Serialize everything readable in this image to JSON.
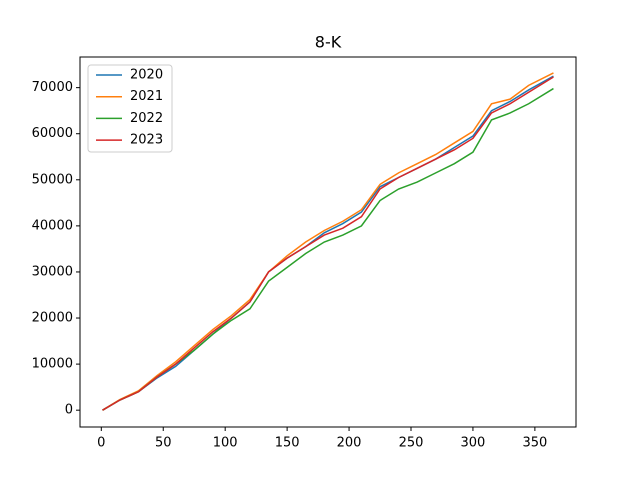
{
  "chart_data": {
    "type": "line",
    "title": "8-K",
    "x": [
      1,
      15,
      30,
      45,
      60,
      75,
      90,
      105,
      120,
      135,
      150,
      165,
      180,
      195,
      210,
      225,
      240,
      255,
      270,
      285,
      300,
      315,
      330,
      345,
      365
    ],
    "series": [
      {
        "name": "2020",
        "color": "#1f77b4",
        "values": [
          0,
          2200,
          4000,
          7000,
          9500,
          13000,
          16500,
          20000,
          23500,
          30000,
          33000,
          35500,
          38500,
          40500,
          43000,
          48500,
          50500,
          52500,
          54500,
          57000,
          59500,
          65000,
          67000,
          69500,
          72500
        ]
      },
      {
        "name": "2021",
        "color": "#ff7f0e",
        "values": [
          0,
          2300,
          4200,
          7500,
          10500,
          14000,
          17500,
          20500,
          24000,
          30000,
          33500,
          36500,
          39000,
          41000,
          43500,
          49000,
          51500,
          53500,
          55500,
          58000,
          60500,
          66500,
          67500,
          70500,
          73200
        ]
      },
      {
        "name": "2022",
        "color": "#2ca02c",
        "values": [
          0,
          2200,
          4000,
          7200,
          10000,
          13000,
          16500,
          19500,
          22000,
          28000,
          31000,
          34000,
          36500,
          38000,
          40000,
          45500,
          48000,
          49500,
          51500,
          53500,
          56000,
          63000,
          64500,
          66500,
          69800
        ]
      },
      {
        "name": "2023",
        "color": "#d62728",
        "values": [
          0,
          2200,
          4000,
          7200,
          10000,
          13500,
          17000,
          20000,
          23500,
          30000,
          33000,
          35500,
          38000,
          39500,
          42000,
          48000,
          50500,
          52500,
          54500,
          56500,
          59000,
          64500,
          66500,
          69000,
          72300
        ]
      }
    ],
    "xlim": [
      -17.2,
      383.2
    ],
    "ylim": [
      -3650,
      76650
    ],
    "xticks": [
      0,
      50,
      100,
      150,
      200,
      250,
      300,
      350
    ],
    "yticks": [
      0,
      10000,
      20000,
      30000,
      40000,
      50000,
      60000,
      70000
    ],
    "legend": "upper left",
    "grid": false
  }
}
